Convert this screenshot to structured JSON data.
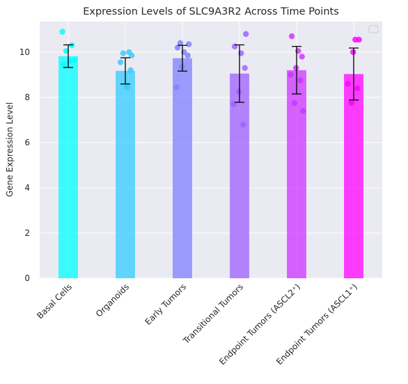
{
  "chart_data": {
    "type": "bar",
    "title": "Expression Levels of SLC9A3R2 Across Time Points",
    "xlabel": "",
    "ylabel": "Gene Expression Level",
    "ylim": [
      0,
      11.35
    ],
    "yticks": [
      0,
      2,
      4,
      6,
      8,
      10
    ],
    "grid": true,
    "legend": "top-right (empty)",
    "background_color": "#eaeaf2",
    "grid_color": "#ffffff",
    "errorbar_color": "#000000",
    "categories": [
      "Basal Cells",
      "Organoids",
      "Early Tumors",
      "Transitional Tumors",
      "Endpoint Tumors (ASCL2⁺)",
      "Endpoint Tumors (ASCL1⁺)"
    ],
    "values": [
      9.82,
      9.17,
      9.73,
      9.05,
      9.2,
      9.03
    ],
    "errors": [
      0.5,
      0.58,
      0.57,
      1.27,
      1.05,
      1.15
    ],
    "colors": [
      "#00ffff",
      "#33ccff",
      "#7f7fff",
      "#9f5fff",
      "#cc33ff",
      "#ff00ff"
    ],
    "points": [
      [
        10.9,
        10.3,
        10.05,
        9.65,
        9.45,
        9.6
      ],
      [
        10.0,
        9.95,
        9.85,
        9.55,
        8.45,
        9.2
      ],
      [
        10.4,
        10.35,
        10.2,
        10.0,
        9.85,
        9.35,
        8.45
      ],
      [
        10.8,
        10.25,
        9.95,
        9.3,
        8.25,
        7.7,
        6.8
      ],
      [
        10.7,
        10.05,
        9.8,
        9.3,
        9.0,
        8.75,
        7.75,
        7.4
      ],
      [
        10.55,
        10.55,
        10.0,
        8.6,
        8.4,
        7.75
      ]
    ]
  }
}
